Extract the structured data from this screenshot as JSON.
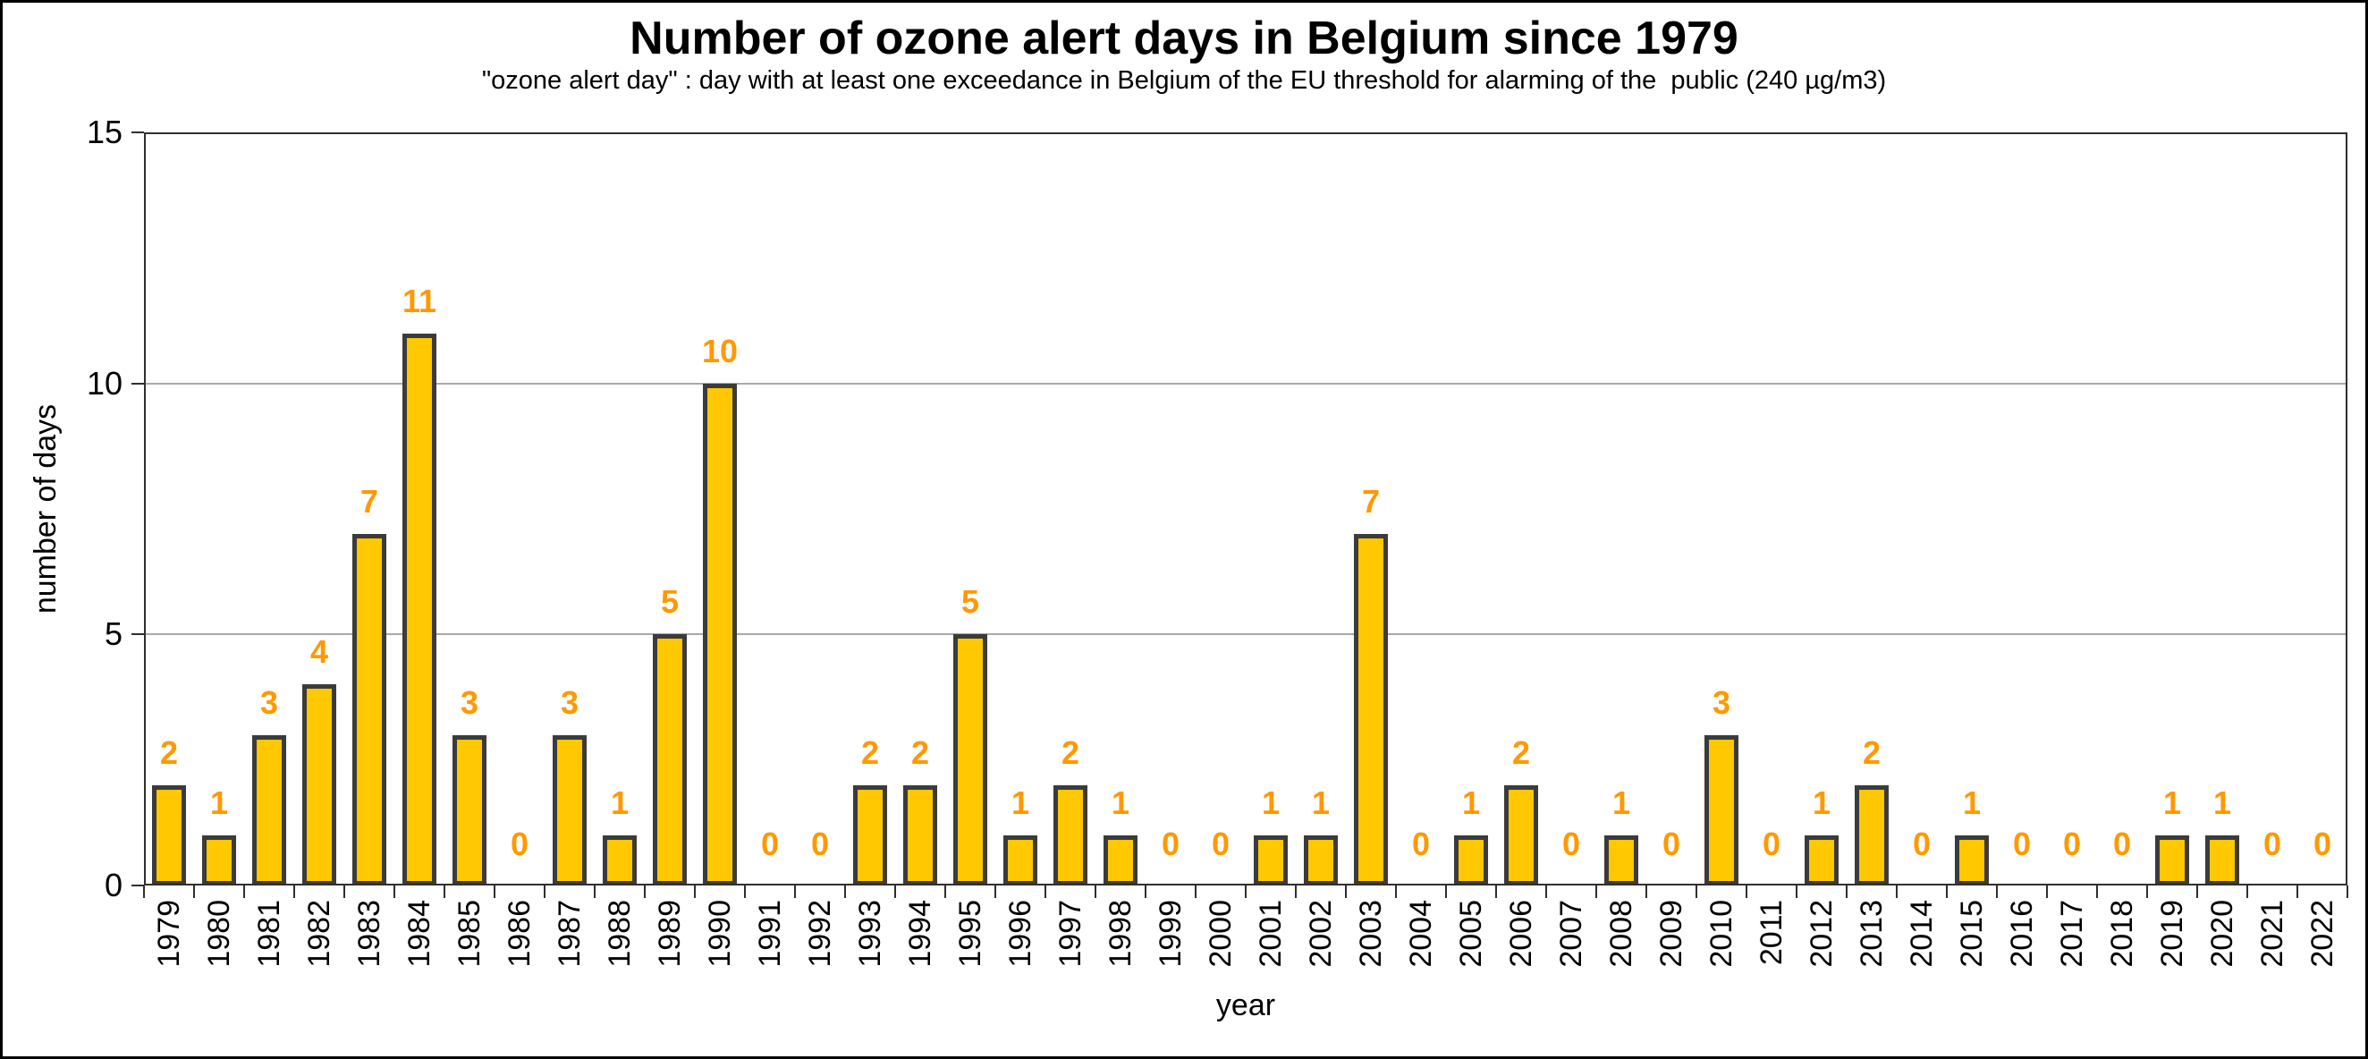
{
  "chart_data": {
    "type": "bar",
    "title": "Number of ozone alert days in Belgium since 1979",
    "subtitle": "\"ozone alert day\" : day with at least one exceedance in Belgium of the EU threshold for alarming of the  public (240 µg/m3)",
    "xlabel": "year",
    "ylabel": "number of days",
    "ylim": [
      0,
      15
    ],
    "yticks": [
      0,
      5,
      10,
      15
    ],
    "gridlines_y": [
      5,
      10
    ],
    "grid": "horizontal",
    "legend": false,
    "data_labels": true,
    "categories": [
      "1979",
      "1980",
      "1981",
      "1982",
      "1983",
      "1984",
      "1985",
      "1986",
      "1987",
      "1988",
      "1989",
      "1990",
      "1991",
      "1992",
      "1993",
      "1994",
      "1995",
      "1996",
      "1997",
      "1998",
      "1999",
      "2000",
      "2001",
      "2002",
      "2003",
      "2004",
      "2005",
      "2006",
      "2007",
      "2008",
      "2009",
      "2010",
      "2011",
      "2012",
      "2013",
      "2014",
      "2015",
      "2016",
      "2017",
      "2018",
      "2019",
      "2020",
      "2021",
      "2022"
    ],
    "values": [
      2,
      1,
      3,
      4,
      7,
      11,
      3,
      0,
      3,
      1,
      5,
      10,
      0,
      0,
      2,
      2,
      5,
      1,
      2,
      1,
      0,
      0,
      1,
      1,
      7,
      0,
      1,
      2,
      0,
      1,
      0,
      3,
      0,
      1,
      2,
      0,
      1,
      0,
      0,
      0,
      1,
      1,
      0,
      0
    ],
    "colors": {
      "bar_fill": "#FFC800",
      "bar_border": "#3B3B3B",
      "data_label": "#FF9900",
      "gridline": "#A9A9A9",
      "axis": "#2F2F2F",
      "text": "#000000"
    }
  }
}
